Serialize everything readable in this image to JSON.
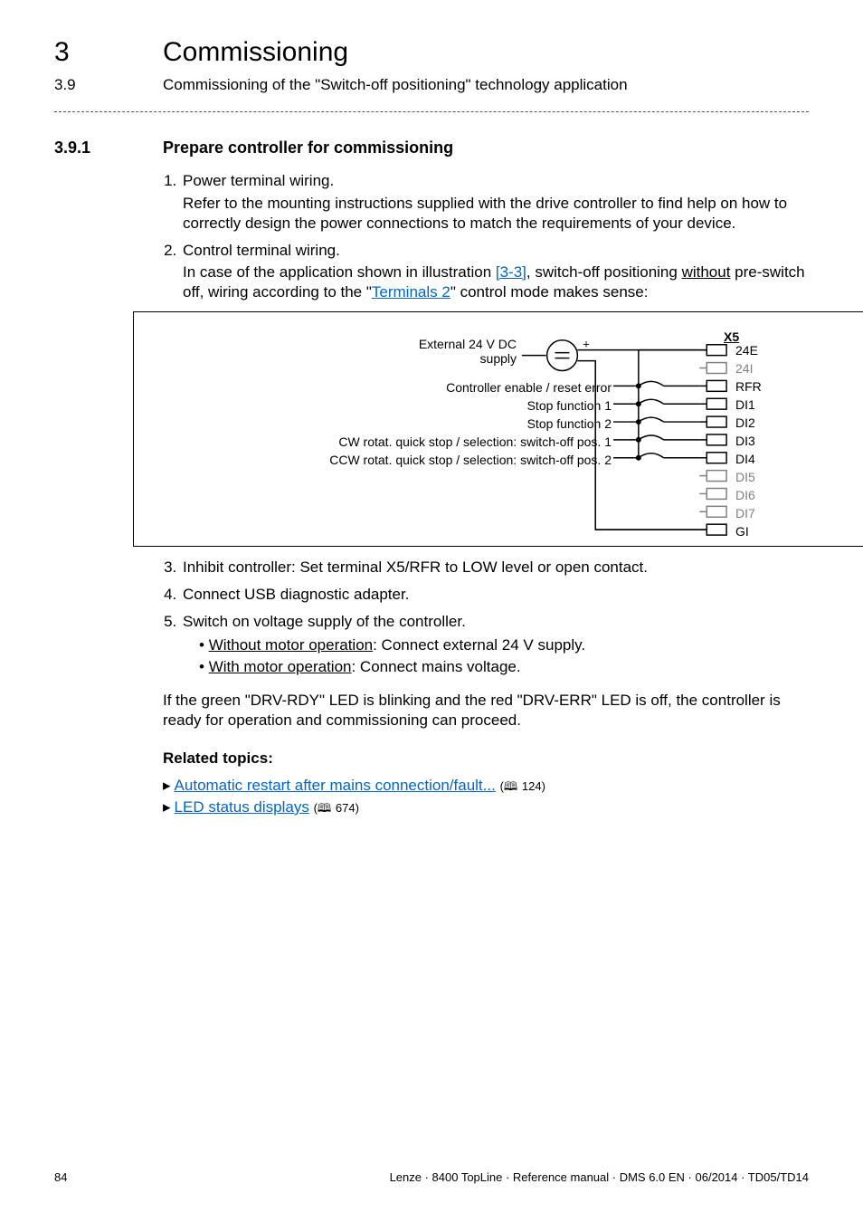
{
  "header": {
    "chapter_num": "3",
    "chapter_title": "Commissioning",
    "section_num": "3.9",
    "section_title": "Commissioning of the \"Switch-off positioning\" technology application"
  },
  "h3": {
    "num": "3.9.1",
    "title": "Prepare controller for commissioning"
  },
  "steps": [
    {
      "title": "Power terminal wiring.",
      "body": "Refer to the mounting instructions supplied with the drive controller to find help on how to correctly design the power connections to match the requirements of your device."
    },
    {
      "title": "Control terminal wiring.",
      "body_pre": "In case of the application shown in illustration ",
      "body_link1": "[3-3]",
      "body_mid1": ", switch-off positioning ",
      "body_u1": "without",
      "body_mid2": " pre-switch off, wiring according to the \"",
      "body_link2": "Terminals 2",
      "body_post": "\" control mode makes sense:"
    },
    {
      "title": "Inhibit controller: Set terminal X5/RFR to LOW level or open contact."
    },
    {
      "title": "Connect USB diagnostic adapter."
    },
    {
      "title": "Switch on voltage supply of the controller.",
      "bullets": [
        {
          "u": "Without motor operation",
          "rest": ": Connect external 24 V supply."
        },
        {
          "u": "With motor operation",
          "rest": ": Connect mains voltage."
        }
      ]
    }
  ],
  "diagram": {
    "supply_label_1": "External 24 V DC",
    "supply_label_2": "supply",
    "left_labels": [
      "Controller enable / reset error",
      "Stop function 1",
      "Stop function 2",
      "CW rotat. quick stop / selection: switch-off pos. 1",
      "CCW rotat. quick stop / selection: switch-off pos. 2"
    ],
    "connector": "X5",
    "terminals": [
      "24E",
      "24I",
      "RFR",
      "DI1",
      "DI2",
      "DI3",
      "DI4",
      "DI5",
      "DI6",
      "DI7",
      "GI"
    ],
    "terminal_colors": {
      "used": "#000000",
      "unused": "#808080"
    }
  },
  "closing_para": "If the green \"DRV-RDY\" LED is blinking and the red \"DRV-ERR\" LED is off, the controller is ready for operation and commissioning can proceed.",
  "related": {
    "heading": "Related topics:",
    "items": [
      {
        "text": "Automatic restart after mains connection/fault...",
        "page": "124"
      },
      {
        "text": "LED status displays",
        "page": "674"
      }
    ]
  },
  "footer": {
    "page": "84",
    "right": "Lenze · 8400 TopLine · Reference manual · DMS 6.0 EN · 06/2014 · TD05/TD14"
  }
}
